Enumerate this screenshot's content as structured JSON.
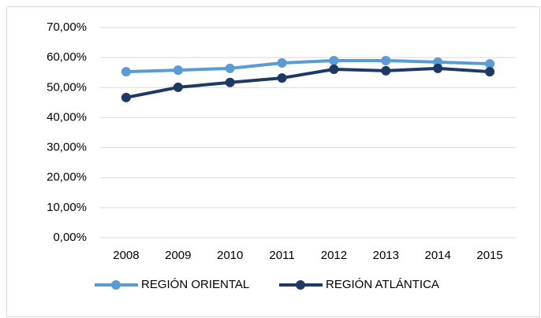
{
  "chart_data": {
    "type": "line",
    "categories": [
      "2008",
      "2009",
      "2010",
      "2011",
      "2012",
      "2013",
      "2014",
      "2015"
    ],
    "series": [
      {
        "name": "REGIÓN ORIENTAL",
        "color": "#5b9bd5",
        "values": [
          55.3,
          55.8,
          56.4,
          58.2,
          59.0,
          59.0,
          58.5,
          57.9
        ]
      },
      {
        "name": "REGIÓN ATLÁNTICA",
        "color": "#203864",
        "values": [
          46.7,
          50.1,
          51.7,
          53.2,
          56.1,
          55.6,
          56.4,
          55.3
        ]
      }
    ],
    "ylim": [
      0,
      70
    ],
    "yticks": [
      {
        "value": 0,
        "label": "0,00%"
      },
      {
        "value": 10,
        "label": "10,00%"
      },
      {
        "value": 20,
        "label": "20,00%"
      },
      {
        "value": 30,
        "label": "30,00%"
      },
      {
        "value": 40,
        "label": "40,00%"
      },
      {
        "value": 50,
        "label": "50,00%"
      },
      {
        "value": 60,
        "label": "60,00%"
      },
      {
        "value": 70,
        "label": "70,00%"
      }
    ],
    "grid": true,
    "legend": "bottom"
  }
}
